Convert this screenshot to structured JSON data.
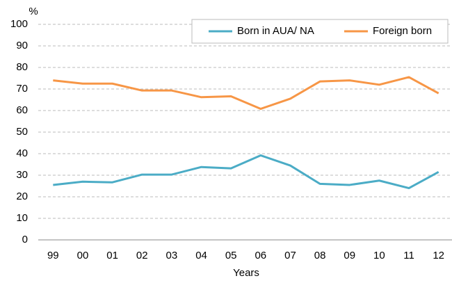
{
  "chart_data": {
    "type": "line",
    "y_unit_label": "%",
    "x_label": "Years",
    "categories": [
      "99",
      "00",
      "01",
      "02",
      "03",
      "04",
      "05",
      "06",
      "07",
      "08",
      "09",
      "10",
      "11",
      "12"
    ],
    "series": [
      {
        "name": "Born in AUA/ NA",
        "color": "#4bacc6",
        "values": [
          25.5,
          27,
          26.7,
          30.3,
          30.3,
          33.8,
          33.2,
          39.2,
          34.5,
          26,
          25.5,
          27.5,
          24,
          31.5
        ]
      },
      {
        "name": "Foreign born",
        "color": "#f79646",
        "values": [
          74,
          72.5,
          72.5,
          69.3,
          69.3,
          66.2,
          66.6,
          60.8,
          65.5,
          73.5,
          74,
          72,
          75.5,
          68
        ]
      }
    ],
    "ylim": [
      0,
      100
    ],
    "yticks": [
      0,
      10,
      20,
      30,
      40,
      50,
      60,
      70,
      80,
      90,
      100
    ],
    "grid": true,
    "legend": "top-right"
  }
}
